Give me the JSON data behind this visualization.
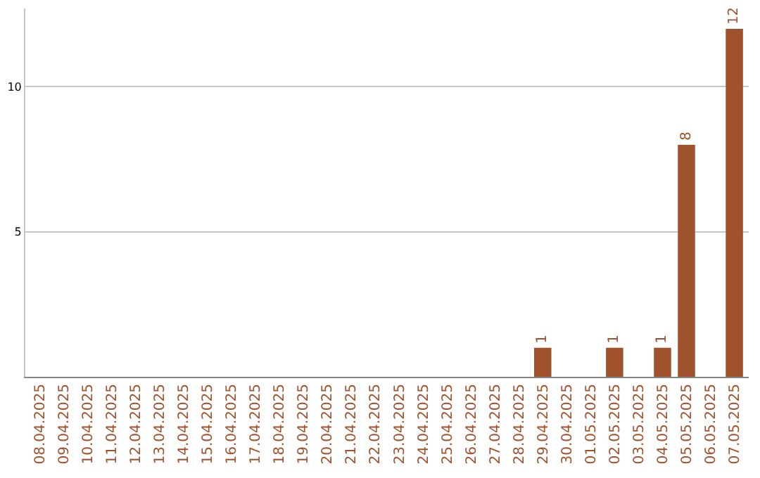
{
  "chart_data": {
    "type": "bar",
    "categories": [
      "08.04.2025",
      "09.04.2025",
      "10.04.2025",
      "11.04.2025",
      "12.04.2025",
      "13.04.2025",
      "14.04.2025",
      "15.04.2025",
      "16.04.2025",
      "17.04.2025",
      "18.04.2025",
      "19.04.2025",
      "20.04.2025",
      "21.04.2025",
      "22.04.2025",
      "23.04.2025",
      "24.04.2025",
      "25.04.2025",
      "26.04.2025",
      "27.04.2025",
      "28.04.2025",
      "29.04.2025",
      "30.04.2025",
      "01.05.2025",
      "02.05.2025",
      "03.05.2025",
      "04.05.2025",
      "05.05.2025",
      "06.05.2025",
      "07.05.2025"
    ],
    "values": [
      0,
      0,
      0,
      0,
      0,
      0,
      0,
      0,
      0,
      0,
      0,
      0,
      0,
      0,
      0,
      0,
      0,
      0,
      0,
      0,
      0,
      1,
      0,
      0,
      1,
      0,
      1,
      8,
      0,
      12
    ],
    "value_labels": [
      null,
      null,
      null,
      null,
      null,
      null,
      null,
      null,
      null,
      null,
      null,
      null,
      null,
      null,
      null,
      null,
      null,
      null,
      null,
      null,
      null,
      "1",
      null,
      null,
      "1",
      null,
      "1",
      "8",
      null,
      "12"
    ],
    "color": "#a0522d",
    "ylim": [
      0,
      12.7
    ],
    "yticks": [
      5,
      10
    ],
    "grid": "y",
    "legend": false
  }
}
